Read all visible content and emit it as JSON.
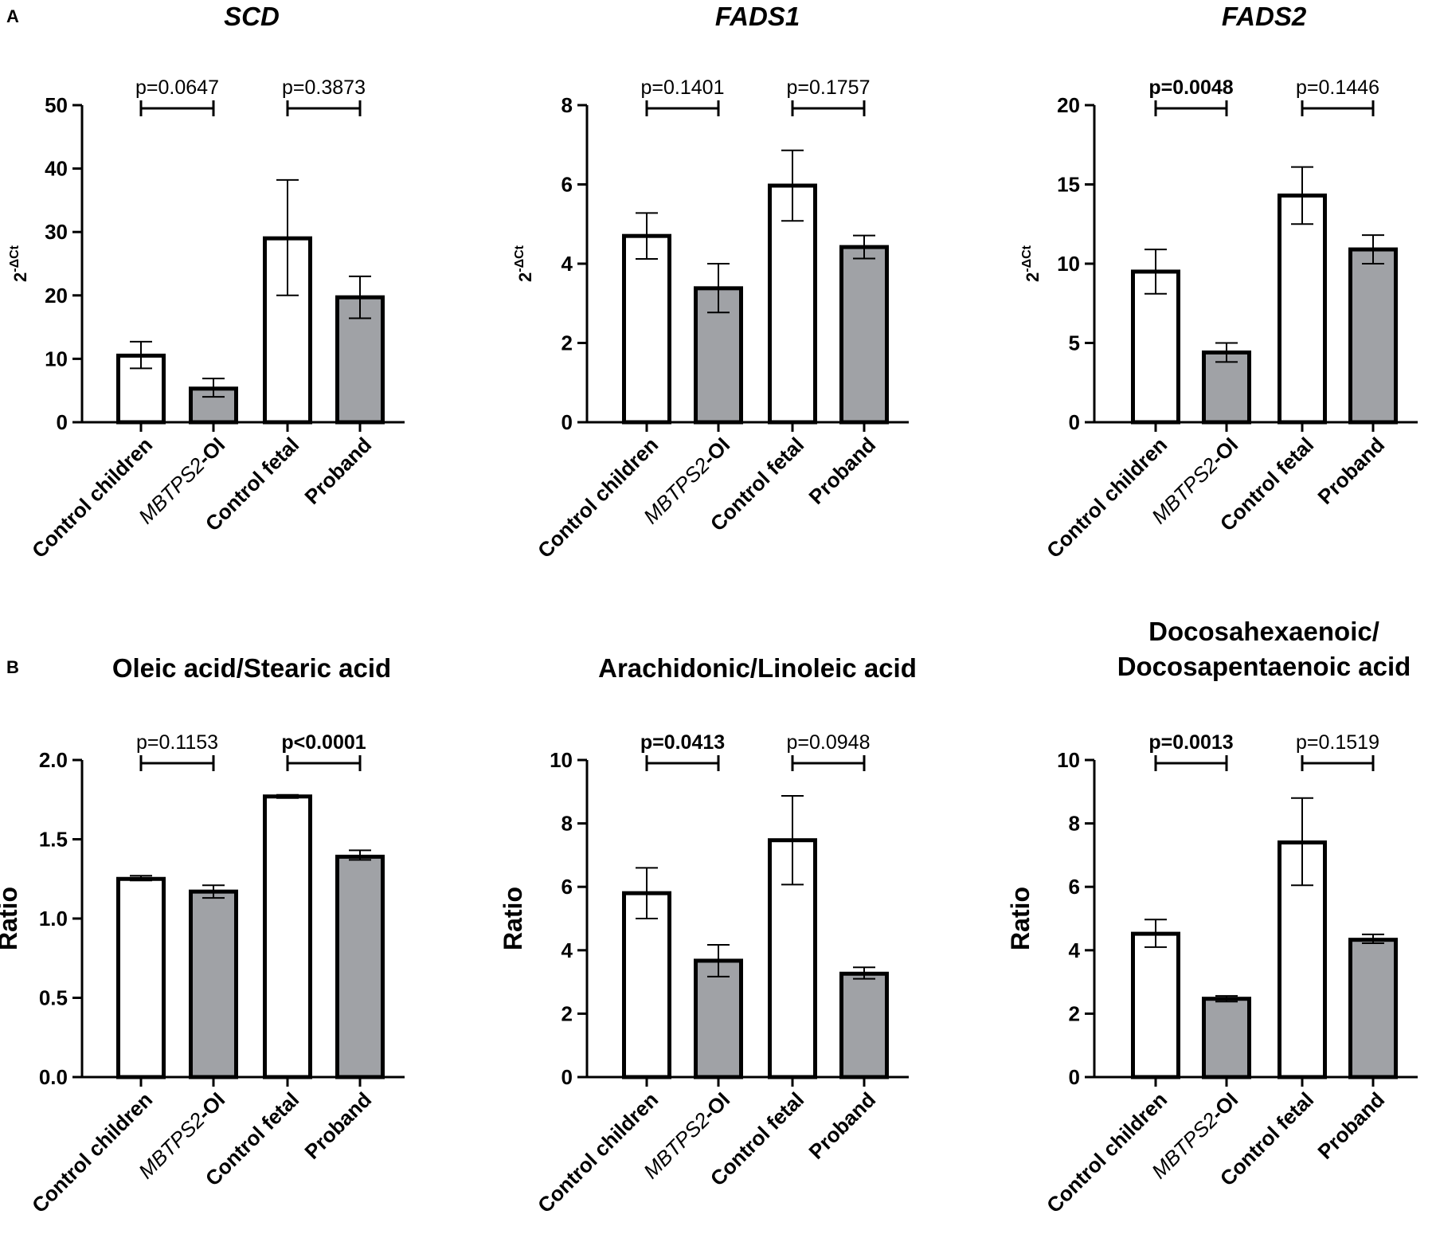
{
  "figure": {
    "panel_labels": [
      "A",
      "B"
    ],
    "bar_colors": {
      "control": "#ffffff",
      "patient": "#a0a2a6"
    },
    "category_labels": [
      {
        "plain": "Control children",
        "italic": "",
        "bold": ""
      },
      {
        "plain": "",
        "italic": "MBTPS2",
        "bold": "-OI"
      },
      {
        "plain": "Control fetal",
        "italic": "",
        "bold": ""
      },
      {
        "plain": "Proband",
        "italic": "",
        "bold": ""
      }
    ]
  },
  "chart_data": [
    {
      "type": "bar",
      "panel": "A",
      "title": "SCD",
      "title_italic": true,
      "ylabel": "2",
      "ylabel_sup": "-ΔCt",
      "ylim": [
        0,
        50
      ],
      "yticks": [
        0,
        10,
        20,
        30,
        40,
        50
      ],
      "tick_format": 0,
      "categories": [
        "Control children",
        "MBTPS2-OI",
        "Control fetal",
        "Proband"
      ],
      "values": [
        10.5,
        5.3,
        29,
        19.7
      ],
      "errors": [
        [
          8.5,
          12.7
        ],
        [
          4.0,
          6.9
        ],
        [
          20.0,
          38.2
        ],
        [
          16.4,
          23.0
        ]
      ],
      "comparisons": [
        {
          "pair": [
            0,
            1
          ],
          "label": "p=0.0647",
          "significant": false
        },
        {
          "pair": [
            2,
            3
          ],
          "label": "p=0.3873",
          "significant": false
        }
      ]
    },
    {
      "type": "bar",
      "panel": "A",
      "title": "FADS1",
      "title_italic": true,
      "ylabel": "2",
      "ylabel_sup": "-ΔCt",
      "ylim": [
        0,
        8
      ],
      "yticks": [
        0,
        2,
        4,
        6,
        8
      ],
      "tick_format": 0,
      "categories": [
        "Control children",
        "MBTPS2-OI",
        "Control fetal",
        "Proband"
      ],
      "values": [
        4.7,
        3.38,
        5.97,
        4.42
      ],
      "errors": [
        [
          4.12,
          5.28
        ],
        [
          2.77,
          4.0
        ],
        [
          5.08,
          6.86
        ],
        [
          4.13,
          4.71
        ]
      ],
      "comparisons": [
        {
          "pair": [
            0,
            1
          ],
          "label": "p=0.1401",
          "significant": false
        },
        {
          "pair": [
            2,
            3
          ],
          "label": "p=0.1757",
          "significant": false
        }
      ]
    },
    {
      "type": "bar",
      "panel": "A",
      "title": "FADS2",
      "title_italic": true,
      "ylabel": "2",
      "ylabel_sup": "-ΔCt",
      "ylim": [
        0,
        20
      ],
      "yticks": [
        0,
        5,
        10,
        15,
        20
      ],
      "tick_format": 0,
      "categories": [
        "Control children",
        "MBTPS2-OI",
        "Control fetal",
        "Proband"
      ],
      "values": [
        9.5,
        4.4,
        14.3,
        10.9
      ],
      "errors": [
        [
          8.1,
          10.9
        ],
        [
          3.8,
          5.0
        ],
        [
          12.5,
          16.1
        ],
        [
          10.0,
          11.8
        ]
      ],
      "comparisons": [
        {
          "pair": [
            0,
            1
          ],
          "label": "p=0.0048",
          "significant": true
        },
        {
          "pair": [
            2,
            3
          ],
          "label": "p=0.1446",
          "significant": false
        }
      ]
    },
    {
      "type": "bar",
      "panel": "B",
      "title": "Oleic acid/Stearic acid",
      "title_italic": false,
      "ylabel": "Ratio",
      "ylabel_sup": "",
      "ylim": [
        0,
        2
      ],
      "yticks": [
        0,
        0.5,
        1,
        1.5,
        2
      ],
      "tick_format": 1,
      "categories": [
        "Control children",
        "MBTPS2-OI",
        "Control fetal",
        "Proband"
      ],
      "values": [
        1.25,
        1.17,
        1.77,
        1.39
      ],
      "errors": [
        [
          1.24,
          1.27
        ],
        [
          1.13,
          1.21
        ],
        [
          1.76,
          1.78
        ],
        [
          1.37,
          1.43
        ]
      ],
      "comparisons": [
        {
          "pair": [
            0,
            1
          ],
          "label": "p=0.1153",
          "significant": false
        },
        {
          "pair": [
            2,
            3
          ],
          "label": "p<0.0001",
          "significant": true
        }
      ]
    },
    {
      "type": "bar",
      "panel": "B",
      "title": "Arachidonic/Linoleic acid",
      "title_italic": false,
      "ylabel": "Ratio",
      "ylabel_sup": "",
      "ylim": [
        0,
        10
      ],
      "yticks": [
        0,
        2,
        4,
        6,
        8,
        10
      ],
      "tick_format": 0,
      "categories": [
        "Control children",
        "MBTPS2-OI",
        "Control fetal",
        "Proband"
      ],
      "values": [
        5.8,
        3.67,
        7.47,
        3.26
      ],
      "errors": [
        [
          5.0,
          6.6
        ],
        [
          3.17,
          4.17
        ],
        [
          6.07,
          8.87
        ],
        [
          3.1,
          3.46
        ]
      ],
      "comparisons": [
        {
          "pair": [
            0,
            1
          ],
          "label": "p=0.0413",
          "significant": true
        },
        {
          "pair": [
            2,
            3
          ],
          "label": "p=0.0948",
          "significant": false
        }
      ]
    },
    {
      "type": "bar",
      "panel": "B",
      "title": "Docosahexaenoic/ Docosapentaenoic acid",
      "title_italic": false,
      "title_lines": [
        "Docosahexaenoic/",
        "Docosapentaenoic acid"
      ],
      "ylabel": "Ratio",
      "ylabel_sup": "",
      "ylim": [
        0,
        10
      ],
      "yticks": [
        0,
        2,
        4,
        6,
        8,
        10
      ],
      "tick_format": 0,
      "categories": [
        "Control children",
        "MBTPS2-OI",
        "Control fetal",
        "Proband"
      ],
      "values": [
        4.52,
        2.47,
        7.4,
        4.33
      ],
      "errors": [
        [
          4.1,
          4.97
        ],
        [
          2.38,
          2.56
        ],
        [
          6.05,
          8.8
        ],
        [
          4.22,
          4.5
        ]
      ],
      "comparisons": [
        {
          "pair": [
            0,
            1
          ],
          "label": "p=0.0013",
          "significant": true
        },
        {
          "pair": [
            2,
            3
          ],
          "label": "p=0.1519",
          "significant": false
        }
      ]
    }
  ]
}
